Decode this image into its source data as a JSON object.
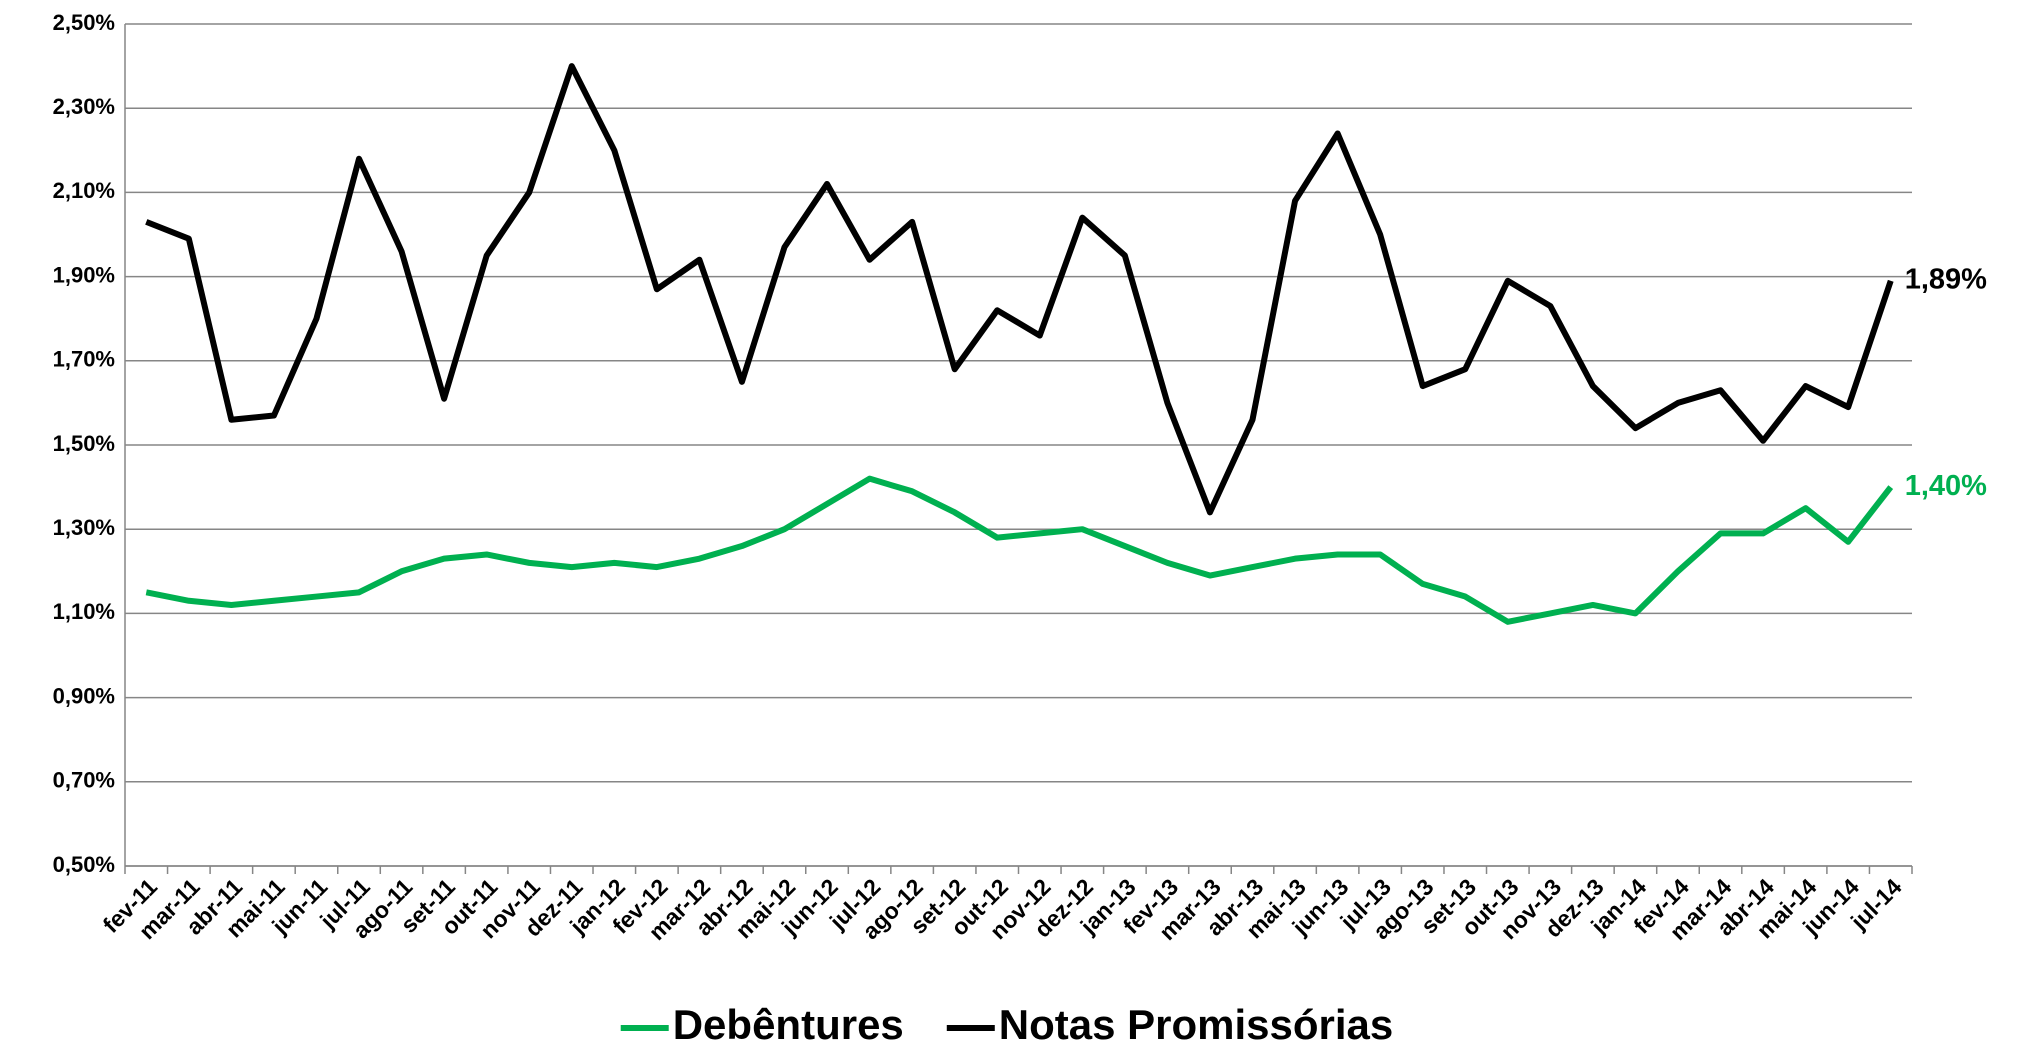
{
  "chart_data": {
    "type": "line",
    "categories": [
      "fev-11",
      "mar-11",
      "abr-11",
      "mai-11",
      "jun-11",
      "jul-11",
      "ago-11",
      "set-11",
      "out-11",
      "nov-11",
      "dez-11",
      "jan-12",
      "fev-12",
      "mar-12",
      "abr-12",
      "mai-12",
      "jun-12",
      "jul-12",
      "ago-12",
      "set-12",
      "out-12",
      "nov-12",
      "dez-12",
      "jan-13",
      "fev-13",
      "mar-13",
      "abr-13",
      "mai-13",
      "jun-13",
      "jul-13",
      "ago-13",
      "set-13",
      "out-13",
      "nov-13",
      "dez-13",
      "jan-14",
      "fev-14",
      "mar-14",
      "abr-14",
      "mai-14",
      "jun-14",
      "jul-14"
    ],
    "series": [
      {
        "name": "Debêntures",
        "color": "#00b050",
        "values": [
          1.15,
          1.13,
          1.12,
          1.13,
          1.14,
          1.15,
          1.2,
          1.23,
          1.24,
          1.22,
          1.21,
          1.22,
          1.21,
          1.23,
          1.26,
          1.3,
          1.36,
          1.42,
          1.39,
          1.34,
          1.28,
          1.29,
          1.3,
          1.26,
          1.22,
          1.19,
          1.21,
          1.23,
          1.24,
          1.24,
          1.17,
          1.14,
          1.08,
          1.1,
          1.12,
          1.1,
          1.2,
          1.29,
          1.29,
          1.35,
          1.27,
          1.4
        ],
        "value_labels": [
          null,
          null,
          null,
          null,
          null,
          null,
          null,
          null,
          null,
          null,
          null,
          null,
          null,
          null,
          null,
          null,
          null,
          null,
          null,
          null,
          null,
          null,
          null,
          null,
          null,
          null,
          null,
          null,
          null,
          null,
          null,
          null,
          null,
          null,
          null,
          null,
          null,
          null,
          null,
          null,
          null,
          "1,40%"
        ]
      },
      {
        "name": "Notas Promissórias",
        "color": "#000000",
        "values": [
          2.03,
          1.99,
          1.56,
          1.57,
          1.8,
          2.18,
          1.96,
          1.61,
          1.95,
          2.1,
          2.4,
          2.2,
          1.87,
          1.94,
          1.65,
          1.97,
          2.12,
          1.94,
          2.03,
          1.68,
          1.82,
          1.76,
          2.04,
          1.95,
          1.6,
          1.34,
          1.56,
          2.08,
          2.24,
          2.0,
          1.64,
          1.68,
          1.89,
          1.83,
          1.64,
          1.54,
          1.6,
          1.63,
          1.51,
          1.64,
          1.59,
          1.89
        ],
        "value_labels": [
          null,
          null,
          null,
          null,
          null,
          null,
          null,
          null,
          null,
          null,
          null,
          null,
          null,
          null,
          null,
          null,
          null,
          null,
          null,
          null,
          null,
          null,
          null,
          null,
          null,
          null,
          null,
          null,
          null,
          null,
          null,
          null,
          null,
          null,
          null,
          null,
          null,
          null,
          null,
          null,
          null,
          "1,89%"
        ]
      }
    ],
    "ylim": [
      0.5,
      2.5
    ],
    "yticks": [
      {
        "value": 0.5,
        "label": "0,50%"
      },
      {
        "value": 0.7,
        "label": "0,70%"
      },
      {
        "value": 0.9,
        "label": "0,90%"
      },
      {
        "value": 1.1,
        "label": "1,10%"
      },
      {
        "value": 1.3,
        "label": "1,30%"
      },
      {
        "value": 1.5,
        "label": "1,50%"
      },
      {
        "value": 1.7,
        "label": "1,70%"
      },
      {
        "value": 1.9,
        "label": "1,90%"
      },
      {
        "value": 2.1,
        "label": "2,10%"
      },
      {
        "value": 2.3,
        "label": "2,30%"
      },
      {
        "value": 2.5,
        "label": "2,50%"
      }
    ],
    "grid": true,
    "legend": "bottom"
  }
}
